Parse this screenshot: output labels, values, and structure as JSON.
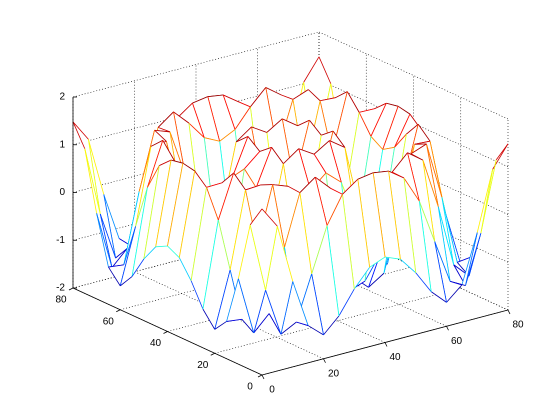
{
  "chart_data": {
    "type": "mesh",
    "colormap": "jet",
    "grid": true,
    "x": [
      0,
      5,
      10,
      15,
      20,
      25,
      30,
      35,
      40,
      45,
      50,
      55,
      60,
      65,
      70,
      75,
      80
    ],
    "y": [
      0,
      5,
      10,
      15,
      20,
      25,
      30,
      35,
      40,
      45,
      50,
      55,
      60,
      65,
      70,
      75,
      80
    ],
    "z": [
      [
        1.48,
        1.03,
        -0.21,
        -1.22,
        -1.5,
        -1.19,
        -0.71,
        -0.34,
        -0.21,
        -0.34,
        -0.71,
        -1.19,
        -1.5,
        -1.22,
        -0.21,
        1.03,
        1.48
      ],
      [
        1.03,
        -0.42,
        -1.43,
        -1.26,
        -0.34,
        0.59,
        1.16,
        1.39,
        1.44,
        1.39,
        1.16,
        0.59,
        -0.34,
        -1.26,
        -1.43,
        -0.42,
        1.03
      ],
      [
        -0.21,
        -1.43,
        -1.11,
        0.19,
        1.25,
        1.49,
        1.17,
        0.78,
        0.62,
        0.78,
        1.17,
        1.49,
        1.25,
        0.19,
        -1.11,
        -1.43,
        -0.21
      ],
      [
        -1.22,
        -1.26,
        0.19,
        1.39,
        1.27,
        0.28,
        -0.65,
        -1.14,
        -1.26,
        -1.14,
        -0.65,
        0.28,
        1.27,
        1.39,
        0.19,
        -1.26,
        -1.22
      ],
      [
        -1.5,
        -0.34,
        1.25,
        1.27,
        -0.09,
        -1.26,
        -1.47,
        -1.17,
        -0.98,
        -1.17,
        -1.47,
        -1.26,
        -0.09,
        1.27,
        1.25,
        -0.34,
        -1.5
      ],
      [
        -1.19,
        0.59,
        1.49,
        0.28,
        -1.26,
        -1.31,
        -0.23,
        0.7,
        0.98,
        0.7,
        -0.23,
        -1.31,
        -1.26,
        0.28,
        1.49,
        0.59,
        -1.19
      ],
      [
        -0.71,
        1.16,
        1.17,
        -0.65,
        -1.47,
        -0.23,
        1.23,
        1.46,
        1.26,
        1.46,
        1.23,
        -0.23,
        -1.47,
        -0.65,
        1.17,
        1.16,
        -0.71
      ],
      [
        -0.34,
        1.39,
        0.78,
        -1.14,
        -1.17,
        0.7,
        1.46,
        0.24,
        -0.62,
        0.24,
        1.46,
        0.7,
        -1.17,
        -1.14,
        0.78,
        1.39,
        -0.34
      ],
      [
        -0.21,
        1.44,
        0.62,
        -1.26,
        -0.98,
        0.98,
        1.26,
        -0.62,
        -1.44,
        -0.62,
        1.26,
        0.98,
        -0.98,
        -1.26,
        0.62,
        1.44,
        -0.21
      ],
      [
        -0.34,
        1.39,
        0.78,
        -1.14,
        -1.17,
        0.7,
        1.46,
        0.24,
        -0.62,
        0.24,
        1.46,
        0.7,
        -1.17,
        -1.14,
        0.78,
        1.39,
        -0.34
      ],
      [
        -0.71,
        1.16,
        1.17,
        -0.65,
        -1.47,
        -0.23,
        1.23,
        1.46,
        1.26,
        1.46,
        1.23,
        -0.23,
        -1.47,
        -0.65,
        1.17,
        1.16,
        -0.71
      ],
      [
        -1.19,
        0.59,
        1.49,
        0.28,
        -1.26,
        -1.31,
        -0.23,
        0.7,
        0.98,
        0.7,
        -0.23,
        -1.31,
        -1.26,
        0.28,
        1.49,
        0.59,
        -1.19
      ],
      [
        -1.5,
        -0.34,
        1.25,
        1.27,
        -0.09,
        -1.26,
        -1.47,
        -1.17,
        -0.98,
        -1.17,
        -1.47,
        -1.26,
        -0.09,
        1.27,
        1.25,
        -0.34,
        -1.5
      ],
      [
        -1.22,
        -1.26,
        0.19,
        1.39,
        1.27,
        0.28,
        -0.65,
        -1.14,
        -1.26,
        -1.14,
        -0.65,
        0.28,
        1.27,
        1.39,
        0.19,
        -1.26,
        -1.22
      ],
      [
        -0.21,
        -1.43,
        -1.11,
        0.19,
        1.25,
        1.49,
        1.17,
        0.78,
        0.62,
        0.78,
        1.17,
        1.49,
        1.25,
        0.19,
        -1.11,
        -1.43,
        -0.21
      ],
      [
        1.03,
        -0.42,
        -1.43,
        -1.26,
        -0.34,
        0.59,
        1.16,
        1.39,
        1.44,
        1.39,
        1.16,
        0.59,
        -0.34,
        -1.26,
        -1.43,
        -0.42,
        1.03
      ],
      [
        1.48,
        1.03,
        -0.21,
        -1.22,
        -1.5,
        -1.19,
        -0.71,
        -0.34,
        -0.21,
        -0.34,
        -0.71,
        -1.19,
        -1.5,
        -1.22,
        -0.21,
        1.03,
        1.48
      ]
    ],
    "xlim": [
      0,
      80
    ],
    "xticks": [
      0,
      20,
      40,
      60,
      80
    ],
    "ylim": [
      0,
      80
    ],
    "yticks": [
      0,
      20,
      40,
      60,
      80
    ],
    "zlim": [
      -2,
      2
    ],
    "zticks": [
      -2,
      -1,
      0,
      1,
      2
    ]
  }
}
